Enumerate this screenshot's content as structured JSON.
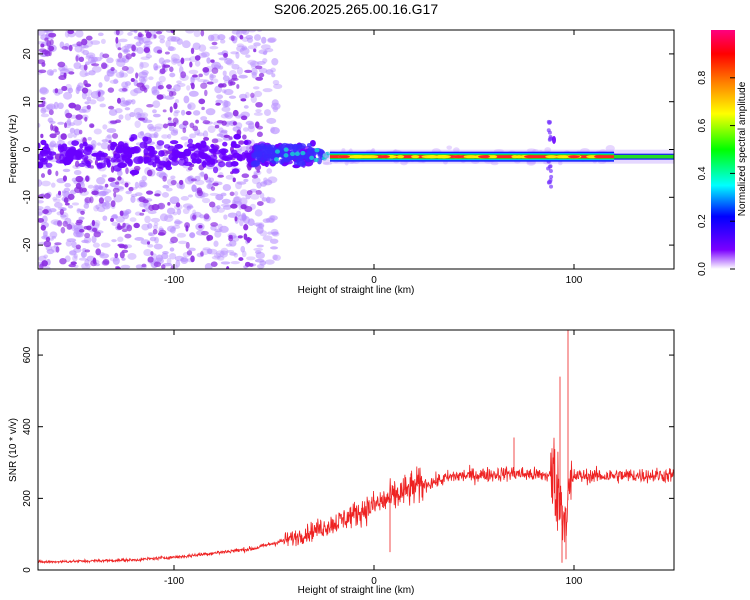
{
  "title": "S206.2025.265.00.16.G17",
  "charts": [
    {
      "type": "heatmap",
      "xlabel": "Height of straight line (km)",
      "ylabel": "Frequency (Hz)",
      "xlim": [
        -168,
        150
      ],
      "ylim": [
        -25,
        25
      ],
      "xticks": [
        "-100",
        "0",
        "100"
      ],
      "xtick_values": [
        -100,
        0,
        100
      ],
      "yticks": [
        "-20",
        "-10",
        "0",
        "10",
        "20"
      ],
      "ytick_values": [
        -20,
        -10,
        0,
        10,
        20
      ],
      "band_center_hz": -1.5,
      "band_start_km": -22,
      "colorbar": {
        "label": "Normalized spectral amplitude",
        "range": [
          0,
          1
        ],
        "ticks": [
          "0.0",
          "0.2",
          "0.4",
          "0.6",
          "0.8"
        ],
        "tick_values": [
          0.0,
          0.2,
          0.4,
          0.6,
          0.8
        ],
        "stops": [
          "#ffffff",
          "#7b00ff",
          "#0000ff",
          "#00ffff",
          "#00ff00",
          "#ffff00",
          "#ff8000",
          "#ff0000",
          "#ff007f"
        ]
      }
    },
    {
      "type": "line",
      "xlabel": "Height of straight line (km)",
      "ylabel": "SNR (10 * v/v)",
      "xlim": [
        -168,
        150
      ],
      "ylim": [
        0,
        670
      ],
      "xticks": [
        "-100",
        "0",
        "100"
      ],
      "xtick_values": [
        -100,
        0,
        100
      ],
      "yticks": [
        "0",
        "200",
        "400",
        "600"
      ],
      "ytick_values": [
        0,
        200,
        400,
        600
      ],
      "color": "#ee2222",
      "trend": [
        {
          "x": -168,
          "y": 22
        },
        {
          "x": -120,
          "y": 28
        },
        {
          "x": -95,
          "y": 38
        },
        {
          "x": -60,
          "y": 60
        },
        {
          "x": -40,
          "y": 90
        },
        {
          "x": -20,
          "y": 130
        },
        {
          "x": 0,
          "y": 180
        },
        {
          "x": 20,
          "y": 230
        },
        {
          "x": 40,
          "y": 262
        },
        {
          "x": 70,
          "y": 270
        },
        {
          "x": 90,
          "y": 262
        },
        {
          "x": 95,
          "y": 150
        },
        {
          "x": 100,
          "y": 262
        },
        {
          "x": 150,
          "y": 265
        }
      ],
      "spikes": [
        {
          "x": 97,
          "y": 670
        },
        {
          "x": 93,
          "y": 540
        },
        {
          "x": 96,
          "y": 30
        },
        {
          "x": 94,
          "y": 20
        },
        {
          "x": 70,
          "y": 370
        },
        {
          "x": 8,
          "y": 50
        }
      ]
    }
  ]
}
